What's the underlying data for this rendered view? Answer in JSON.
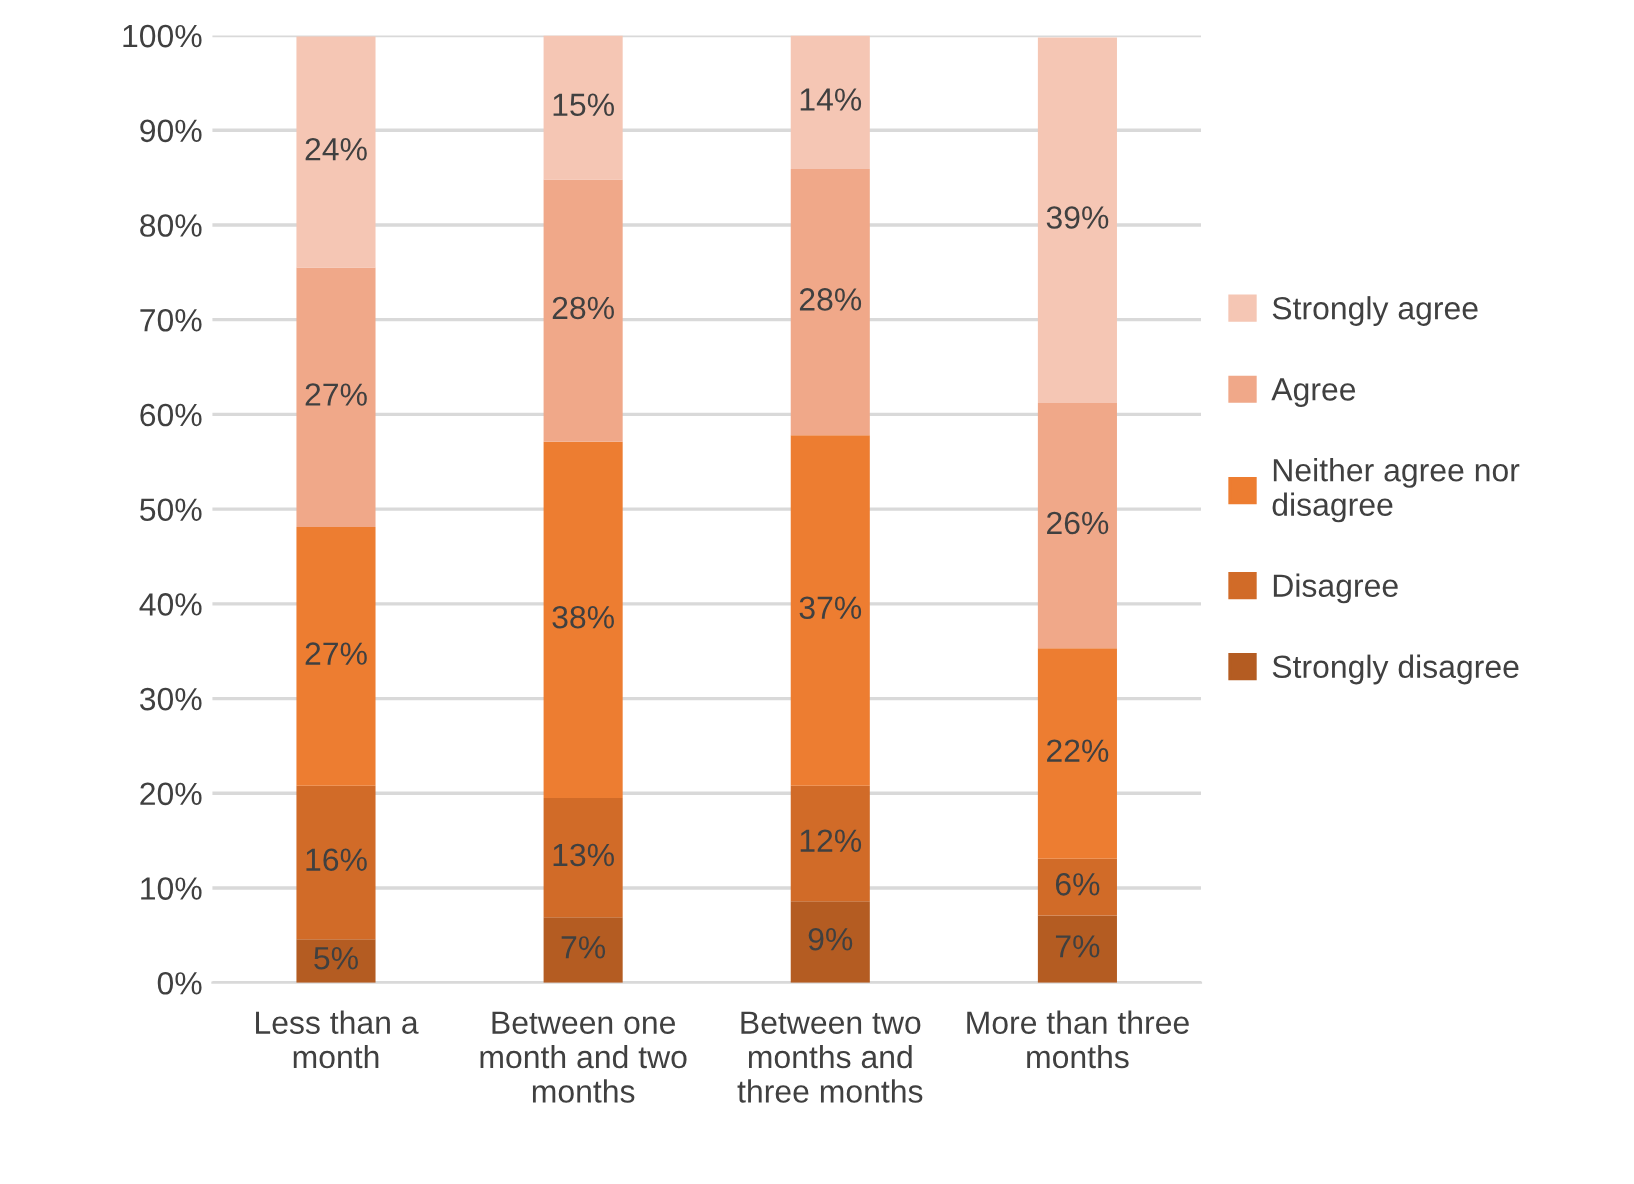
{
  "chart_data": {
    "type": "bar",
    "stacked": true,
    "categories": [
      "Less than a month",
      "Between one month and two months",
      "Between two months and three months",
      "More than three months"
    ],
    "series": [
      {
        "name": "Strongly disagree",
        "color": "#b45c22",
        "values": [
          4.6,
          6.9,
          8.6,
          7.1
        ],
        "value_labels": [
          "5%",
          "7%",
          "9%",
          "7%"
        ]
      },
      {
        "name": "Disagree",
        "color": "#d16b28",
        "values": [
          16.2,
          12.6,
          12.2,
          6.0
        ],
        "value_labels": [
          "16%",
          "13%",
          "12%",
          "6%"
        ]
      },
      {
        "name": "Neither agree nor disagree",
        "color": "#ed7d31",
        "values": [
          27.3,
          37.6,
          37.0,
          22.2
        ],
        "value_labels": [
          "27%",
          "38%",
          "37%",
          "22%"
        ]
      },
      {
        "name": "Agree",
        "color": "#f0a889",
        "values": [
          27.4,
          27.7,
          28.1,
          25.9
        ],
        "value_labels": [
          "27%",
          "28%",
          "28%",
          "26%"
        ]
      },
      {
        "name": "Strongly agree",
        "color": "#f5c6b4",
        "values": [
          24.4,
          15.2,
          14.1,
          38.6
        ],
        "value_labels": [
          "24%",
          "15%",
          "14%",
          "39%"
        ]
      }
    ],
    "ylim": [
      0,
      100
    ],
    "yticks": [
      {
        "value": 0,
        "label": "0%"
      },
      {
        "value": 10,
        "label": "10%"
      },
      {
        "value": 20,
        "label": "20%"
      },
      {
        "value": 30,
        "label": "30%"
      },
      {
        "value": 40,
        "label": "40%"
      },
      {
        "value": 50,
        "label": "50%"
      },
      {
        "value": 60,
        "label": "60%"
      },
      {
        "value": 70,
        "label": "70%"
      },
      {
        "value": 80,
        "label": "80%"
      },
      {
        "value": 90,
        "label": "90%"
      },
      {
        "value": 100,
        "label": "100%"
      }
    ],
    "grid": "y",
    "legend": "right"
  }
}
